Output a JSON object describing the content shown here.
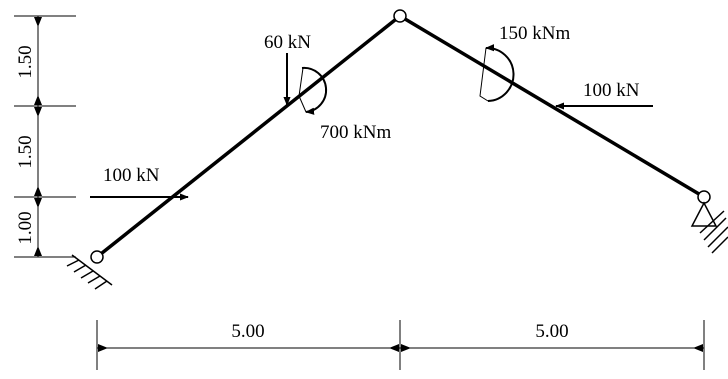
{
  "dimensions": {
    "vertical": [
      "1.50",
      "1.50",
      "1.00"
    ],
    "horizontal": [
      "5.00",
      "5.00"
    ]
  },
  "loads": {
    "force_left": "100 kN",
    "force_top": "60 kN",
    "moment_left": "700 kNm",
    "moment_right": "150 kNm",
    "force_right": "100 kN"
  },
  "colors": {
    "line": "#000000",
    "background": "#ffffff"
  }
}
